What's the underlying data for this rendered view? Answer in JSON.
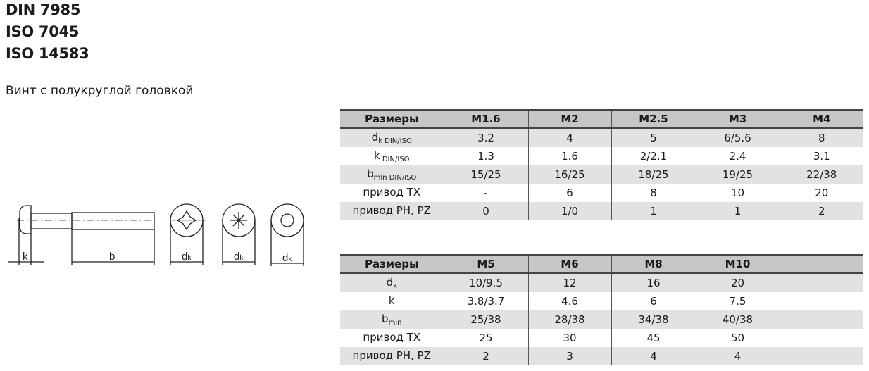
{
  "standards": [
    "DIN 7985",
    "ISO 7045",
    "ISO 14583"
  ],
  "subtitle": "Винт с полукруглой головкой",
  "drawing": {
    "k": "k",
    "b": "b",
    "dk": "d",
    "dk_sub": "k"
  },
  "table1": {
    "headers": [
      "Размеры",
      "M1.6",
      "M2",
      "M2.5",
      "M3",
      "M4"
    ],
    "rows": [
      {
        "label": "d",
        "sub": "k DIN/ISO",
        "values": [
          "3.2",
          "4",
          "5",
          "6/5.6",
          "8"
        ]
      },
      {
        "label": "k",
        "sub": " DIN/ISO",
        "values": [
          "1.3",
          "1.6",
          "2/2.1",
          "2.4",
          "3.1"
        ]
      },
      {
        "label": "b",
        "sub": "min DIN/ISO",
        "values": [
          "15/25",
          "16/25",
          "18/25",
          "19/25",
          "22/38"
        ]
      },
      {
        "label": "привод TX",
        "sub": "",
        "values": [
          "-",
          "6",
          "8",
          "10",
          "20"
        ]
      },
      {
        "label": "привод PH, PZ",
        "sub": "",
        "values": [
          "0",
          "1/0",
          "1",
          "1",
          "2"
        ]
      }
    ]
  },
  "table2": {
    "headers": [
      "Размеры",
      "M5",
      "M6",
      "M8",
      "M10",
      ""
    ],
    "rows": [
      {
        "label": "d",
        "sub": "k",
        "values": [
          "10/9.5",
          "12",
          "16",
          "20",
          ""
        ]
      },
      {
        "label": "k",
        "sub": "",
        "values": [
          "3.8/3.7",
          "4.6",
          "6",
          "7.5",
          ""
        ]
      },
      {
        "label": "b",
        "sub": "min",
        "values": [
          "25/38",
          "28/38",
          "34/38",
          "40/38",
          ""
        ]
      },
      {
        "label": "привод TX",
        "sub": "",
        "values": [
          "25",
          "30",
          "45",
          "50",
          ""
        ]
      },
      {
        "label": "привод PH, PZ",
        "sub": "",
        "values": [
          "2",
          "3",
          "4",
          "4",
          ""
        ]
      }
    ]
  }
}
